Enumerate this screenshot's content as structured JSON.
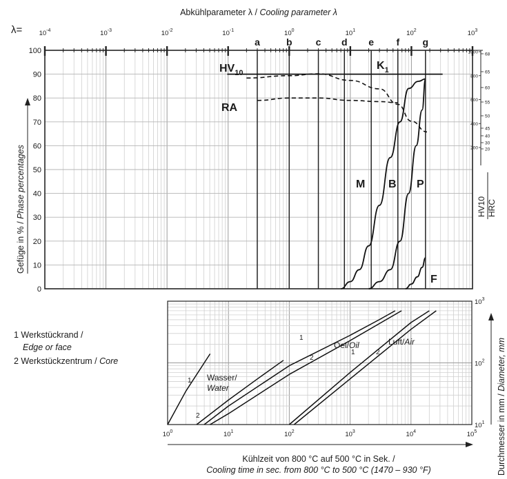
{
  "top_axis": {
    "title_de": "Abkühlparameter λ / ",
    "title_en": "Cooling parameter λ",
    "lambda_prefix": "λ=",
    "exponent_labels": [
      "-4",
      "-3",
      "-2",
      "-1",
      "0",
      "1",
      "2",
      "3"
    ]
  },
  "left_axis": {
    "title_de": "Gefüge in % / ",
    "title_en": "Phase percentages",
    "ticks": [
      "0",
      "10",
      "20",
      "30",
      "40",
      "50",
      "60",
      "70",
      "80",
      "90",
      "100"
    ]
  },
  "hardness_axis": {
    "hv_ticks": [
      "1000",
      "800",
      "600",
      "400",
      "200"
    ],
    "hrc_ticks": [
      "68",
      "65",
      "60",
      "55",
      "50",
      "45",
      "40",
      "30",
      "20"
    ],
    "label_hv": "HV10",
    "label_hrc": "HRC"
  },
  "bottom_axis": {
    "title_de": "Kühlzeit von 800 °C auf 500 °C in Sek. /",
    "title_en": "Cooling time in sec. from 800 °C to 500 °C (1470 – 930 °F)",
    "exponent_labels": [
      "0",
      "1",
      "2",
      "3",
      "4",
      "5"
    ]
  },
  "right_axis": {
    "title_de": "Durchmesser in mm / ",
    "title_en": "Diameter, mm",
    "exponent_labels": [
      "3",
      "2",
      "1"
    ]
  },
  "legend": {
    "item1_de": "1 Werkstückrand /",
    "item1_en": "Edge or face",
    "item2_de": "2 Werkstückzentrum / ",
    "item2_en": "Core"
  },
  "curve_labels": {
    "hv": "HV",
    "hv_sub": "10",
    "k": "K",
    "k_sub": "1",
    "ra": "RA",
    "m": "M",
    "b": "B",
    "p": "P",
    "f": "F",
    "oel": "Oel/",
    "oil": "Oil",
    "luft": "Luft/",
    "air": "Air",
    "wasser": "Wasser/",
    "water": "Water",
    "n1": "1",
    "n2": "2"
  },
  "chart_data": [
    {
      "type": "line",
      "title": "",
      "xlabel": "Abkühlparameter λ / Cooling parameter λ",
      "ylabel": "Gefüge in % / Phase percentages",
      "x_scale": "log",
      "xlim": [
        0.0001,
        1000
      ],
      "ylim": [
        0,
        100
      ],
      "grid": true,
      "cooling_lines": [
        {
          "label": "a",
          "lambda": 0.3
        },
        {
          "label": "b",
          "lambda": 1.0
        },
        {
          "label": "c",
          "lambda": 3.0
        },
        {
          "label": "d",
          "lambda": 8.0
        },
        {
          "label": "e",
          "lambda": 22
        },
        {
          "label": "f",
          "lambda": 60
        },
        {
          "label": "g",
          "lambda": 170
        }
      ],
      "series": [
        {
          "name": "M",
          "x": [
            7,
            10,
            14,
            20,
            30,
            45,
            65,
            90,
            130,
            170
          ],
          "y": [
            0,
            3,
            8,
            18,
            35,
            55,
            70,
            84,
            87,
            88
          ]
        },
        {
          "name": "B",
          "x": [
            20,
            30,
            45,
            65,
            90,
            120,
            150,
            170
          ],
          "y": [
            0,
            3,
            8,
            20,
            40,
            60,
            75,
            88
          ]
        },
        {
          "name": "P",
          "x": [
            80,
            100,
            125,
            150,
            170
          ],
          "y": [
            0,
            2,
            5,
            9,
            13
          ]
        },
        {
          "name": "HV10",
          "x": [
            0.2,
            1,
            3,
            10,
            30,
            60,
            100,
            180
          ],
          "y": [
            780,
            800,
            815,
            760,
            690,
            560,
            420,
            330
          ]
        },
        {
          "name": "RA",
          "x": [
            0.3,
            1,
            3,
            10,
            30,
            60
          ],
          "y": [
            79,
            80,
            80,
            79,
            78.5,
            78
          ]
        }
      ],
      "k1": {
        "label": "K1",
        "y": 90,
        "x_from": 0.2,
        "x_to": 250
      }
    },
    {
      "type": "line",
      "title": "",
      "xlabel": "Kühlzeit von 800 °C auf 500 °C in Sek. / Cooling time in sec. from 800 °C to 500 °C (1470 – 930 °F)",
      "ylabel": "Durchmesser in mm / Diameter, mm",
      "x_scale": "log",
      "y_scale": "log",
      "xlim": [
        1,
        100000
      ],
      "ylim": [
        10,
        1000
      ],
      "grid": true,
      "series": [
        {
          "name": "Wasser/Water 1",
          "x": [
            1,
            2,
            5
          ],
          "y": [
            10,
            35,
            140
          ]
        },
        {
          "name": "Wasser/Water 2",
          "x": [
            3,
            10,
            30,
            80
          ],
          "y": [
            10,
            25,
            55,
            110
          ]
        },
        {
          "name": "Oel/Oil 1",
          "x": [
            4,
            10,
            100,
            1000,
            3000,
            5500
          ],
          "y": [
            10,
            20,
            90,
            280,
            500,
            700
          ]
        },
        {
          "name": "Oel/Oil 2",
          "x": [
            5,
            10,
            100,
            1000,
            7000
          ],
          "y": [
            10,
            15,
            65,
            230,
            700
          ]
        },
        {
          "name": "Luft/Air 1",
          "x": [
            100,
            1000,
            10000,
            20000
          ],
          "y": [
            10,
            70,
            450,
            700
          ]
        },
        {
          "name": "Luft/Air 2",
          "x": [
            120,
            1000,
            10000,
            26000
          ],
          "y": [
            10,
            55,
            350,
            700
          ]
        }
      ]
    }
  ]
}
